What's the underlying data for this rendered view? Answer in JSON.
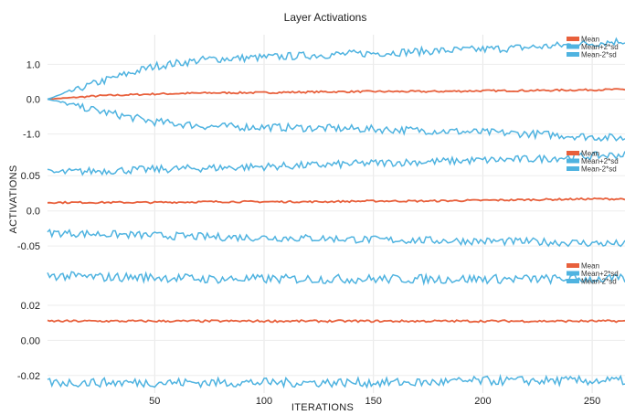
{
  "chart_data": {
    "type": "line",
    "title": "Layer Activations",
    "xlabel": "ITERATIONS",
    "ylabel": "ACTIVATIONS",
    "x_ticks": [
      50,
      100,
      150,
      200,
      250
    ],
    "xlim": [
      1,
      265
    ],
    "grid": true,
    "legend_position": "top-right",
    "colors": {
      "Mean": "#e8603c",
      "Mean+2*sd": "#4fb3e0",
      "Mean-2*sd": "#4fb3e0"
    },
    "panels": [
      {
        "ylim": [
          -1.35,
          1.85
        ],
        "y_ticks": [
          1.0,
          0.0,
          -1.0
        ],
        "y_tick_labels": [
          "1.0",
          "0.0",
          "-1.0"
        ],
        "series": [
          {
            "name": "Mean",
            "x": [
              1,
              25,
              50,
              75,
              100,
              125,
              150,
              175,
              200,
              225,
              250,
              265
            ],
            "values": [
              0.0,
              0.1,
              0.15,
              0.18,
              0.19,
              0.21,
              0.22,
              0.22,
              0.24,
              0.25,
              0.27,
              0.28
            ]
          },
          {
            "name": "Mean+2*sd",
            "x": [
              1,
              25,
              50,
              75,
              100,
              125,
              150,
              175,
              200,
              225,
              250,
              265
            ],
            "values": [
              0.0,
              0.5,
              0.95,
              1.15,
              1.2,
              1.27,
              1.32,
              1.38,
              1.43,
              1.5,
              1.6,
              1.68
            ]
          },
          {
            "name": "Mean-2*sd",
            "x": [
              1,
              25,
              50,
              75,
              100,
              125,
              150,
              175,
              200,
              225,
              250,
              265
            ],
            "values": [
              0.0,
              -0.35,
              -0.65,
              -0.78,
              -0.8,
              -0.83,
              -0.86,
              -0.9,
              -0.95,
              -1.0,
              -1.08,
              -1.12
            ]
          }
        ]
      },
      {
        "ylim": [
          -0.068,
          0.088
        ],
        "y_ticks": [
          0.05,
          0.0,
          -0.05
        ],
        "y_tick_labels": [
          "0.05",
          "0.0",
          "-0.05"
        ],
        "series": [
          {
            "name": "Mean",
            "x": [
              1,
              25,
              50,
              75,
              100,
              125,
              150,
              175,
              200,
              225,
              250,
              265
            ],
            "values": [
              0.012,
              0.012,
              0.012,
              0.013,
              0.013,
              0.013,
              0.014,
              0.014,
              0.015,
              0.016,
              0.017,
              0.017
            ]
          },
          {
            "name": "Mean+2*sd",
            "x": [
              1,
              25,
              50,
              75,
              100,
              125,
              150,
              175,
              200,
              225,
              250,
              265
            ],
            "values": [
              0.054,
              0.057,
              0.059,
              0.061,
              0.063,
              0.065,
              0.068,
              0.07,
              0.072,
              0.074,
              0.078,
              0.08
            ]
          },
          {
            "name": "Mean-2*sd",
            "x": [
              1,
              25,
              50,
              75,
              100,
              125,
              150,
              175,
              200,
              225,
              250,
              265
            ],
            "values": [
              -0.031,
              -0.033,
              -0.035,
              -0.037,
              -0.038,
              -0.039,
              -0.041,
              -0.042,
              -0.043,
              -0.044,
              -0.046,
              -0.047
            ]
          }
        ]
      },
      {
        "ylim": [
          -0.03,
          0.045
        ],
        "y_ticks": [
          0.02,
          0.0,
          -0.02
        ],
        "y_tick_labels": [
          "0.02",
          "0.00",
          "-0.02"
        ],
        "series": [
          {
            "name": "Mean",
            "x": [
              1,
              25,
              50,
              75,
              100,
              125,
              150,
              175,
              200,
              225,
              250,
              265
            ],
            "values": [
              0.011,
              0.011,
              0.011,
              0.011,
              0.011,
              0.011,
              0.011,
              0.011,
              0.011,
              0.011,
              0.011,
              0.011
            ]
          },
          {
            "name": "Mean+2*sd",
            "x": [
              1,
              25,
              50,
              75,
              100,
              125,
              150,
              175,
              200,
              225,
              250,
              265
            ],
            "values": [
              0.037,
              0.036,
              0.036,
              0.035,
              0.035,
              0.035,
              0.035,
              0.035,
              0.035,
              0.035,
              0.035,
              0.035
            ]
          },
          {
            "name": "Mean-2*sd",
            "x": [
              1,
              25,
              50,
              75,
              100,
              125,
              150,
              175,
              200,
              225,
              250,
              265
            ],
            "values": [
              -0.024,
              -0.024,
              -0.024,
              -0.024,
              -0.024,
              -0.024,
              -0.024,
              -0.024,
              -0.023,
              -0.023,
              -0.023,
              -0.023
            ]
          }
        ]
      }
    ]
  }
}
